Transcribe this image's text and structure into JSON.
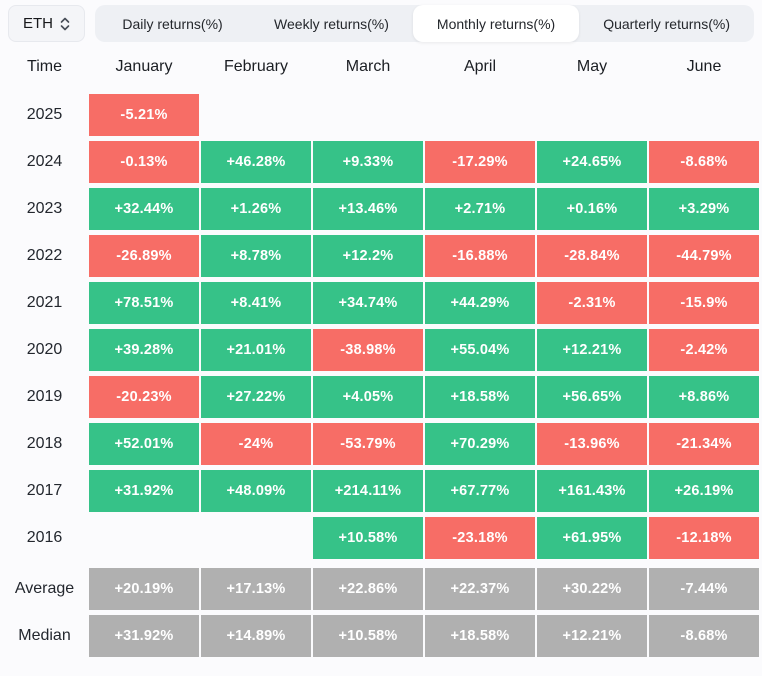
{
  "selector": {
    "label": "ETH"
  },
  "tabs": {
    "items": [
      "Daily returns(%)",
      "Weekly returns(%)",
      "Monthly returns(%)",
      "Quarterly returns(%)"
    ],
    "selected_index": 2
  },
  "colors": {
    "positive": "#36c288",
    "negative": "#f76d66",
    "summary": "#b0b0b0"
  },
  "table": {
    "columns": [
      "Time",
      "January",
      "February",
      "March",
      "April",
      "May",
      "June"
    ],
    "rows": [
      {
        "label": "2025",
        "kind": "year",
        "values": [
          "-5.21%",
          "",
          "",
          "",
          "",
          ""
        ]
      },
      {
        "label": "2024",
        "kind": "year",
        "values": [
          "-0.13%",
          "+46.28%",
          "+9.33%",
          "-17.29%",
          "+24.65%",
          "-8.68%"
        ]
      },
      {
        "label": "2023",
        "kind": "year",
        "values": [
          "+32.44%",
          "+1.26%",
          "+13.46%",
          "+2.71%",
          "+0.16%",
          "+3.29%"
        ]
      },
      {
        "label": "2022",
        "kind": "year",
        "values": [
          "-26.89%",
          "+8.78%",
          "+12.2%",
          "-16.88%",
          "-28.84%",
          "-44.79%"
        ]
      },
      {
        "label": "2021",
        "kind": "year",
        "values": [
          "+78.51%",
          "+8.41%",
          "+34.74%",
          "+44.29%",
          "-2.31%",
          "-15.9%"
        ]
      },
      {
        "label": "2020",
        "kind": "year",
        "values": [
          "+39.28%",
          "+21.01%",
          "-38.98%",
          "+55.04%",
          "+12.21%",
          "-2.42%"
        ]
      },
      {
        "label": "2019",
        "kind": "year",
        "values": [
          "-20.23%",
          "+27.22%",
          "+4.05%",
          "+18.58%",
          "+56.65%",
          "+8.86%"
        ]
      },
      {
        "label": "2018",
        "kind": "year",
        "values": [
          "+52.01%",
          "-24%",
          "-53.79%",
          "+70.29%",
          "-13.96%",
          "-21.34%"
        ]
      },
      {
        "label": "2017",
        "kind": "year",
        "values": [
          "+31.92%",
          "+48.09%",
          "+214.11%",
          "+67.77%",
          "+161.43%",
          "+26.19%"
        ]
      },
      {
        "label": "2016",
        "kind": "year",
        "values": [
          "",
          "",
          "+10.58%",
          "-23.18%",
          "+61.95%",
          "-12.18%"
        ]
      },
      {
        "label": "Average",
        "kind": "summary",
        "values": [
          "+20.19%",
          "+17.13%",
          "+22.86%",
          "+22.37%",
          "+30.22%",
          "-7.44%"
        ]
      },
      {
        "label": "Median",
        "kind": "summary",
        "values": [
          "+31.92%",
          "+14.89%",
          "+10.58%",
          "+18.58%",
          "+12.21%",
          "-8.68%"
        ]
      }
    ]
  }
}
